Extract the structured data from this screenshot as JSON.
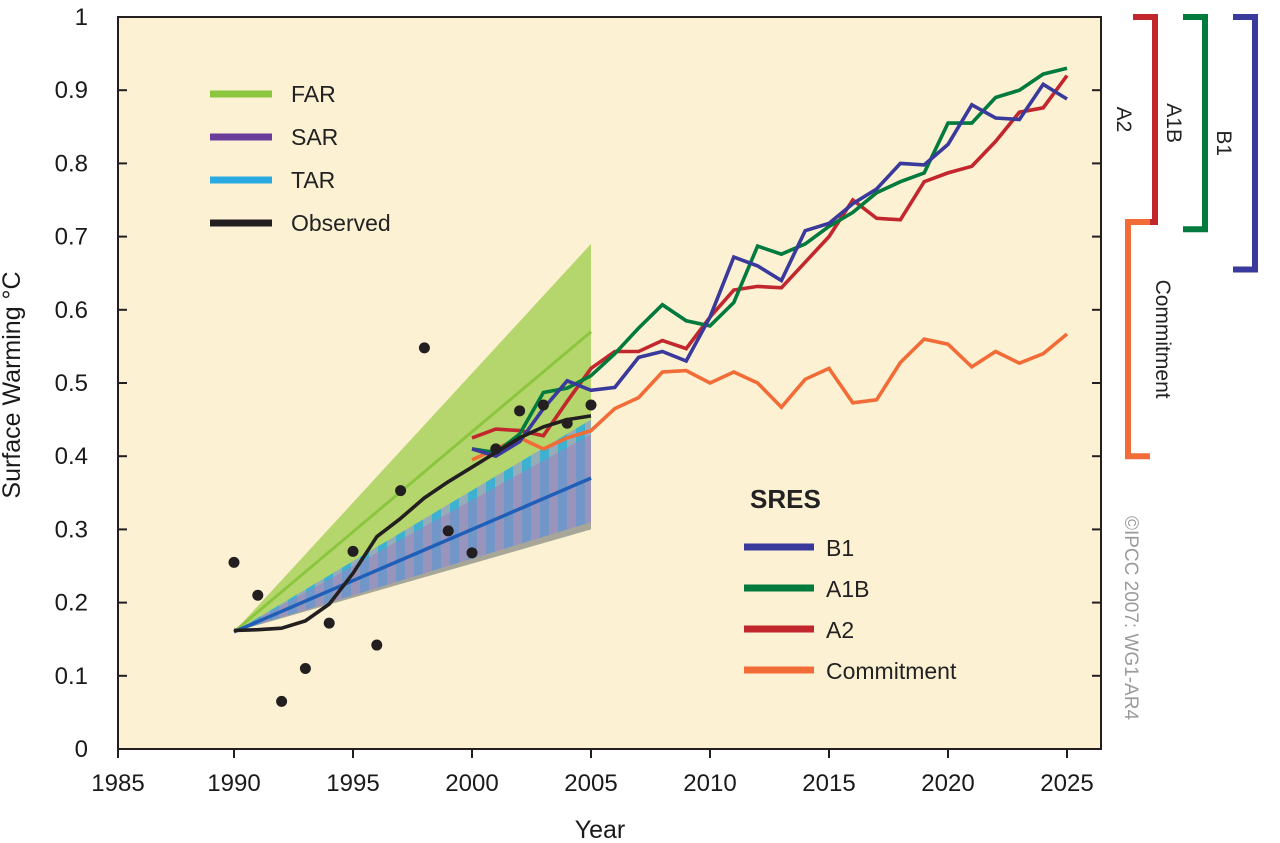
{
  "chart_data": {
    "type": "line",
    "xlabel": "Year",
    "ylabel": "Surface Warming °C",
    "xlim": [
      1985,
      2025
    ],
    "ylim": [
      0,
      1
    ],
    "x_ticks": [
      1985,
      1990,
      1995,
      2000,
      2005,
      2010,
      2015,
      2020,
      2025
    ],
    "y_ticks": [
      0,
      0.1,
      0.2,
      0.3,
      0.4,
      0.5,
      0.6,
      0.7,
      0.8,
      0.9,
      1
    ],
    "y_tick_labels": [
      "0",
      "0.1",
      "0.2",
      "0.3",
      "0.4",
      "0.5",
      "0.6",
      "0.7",
      "0.8",
      "0.9",
      "1"
    ],
    "plot_background": "#fdf1d3",
    "legend_assessments": [
      {
        "name": "FAR",
        "color": "#8cc63f"
      },
      {
        "name": "SAR",
        "color": "#6a3d9a"
      },
      {
        "name": "TAR",
        "color": "#29abe2"
      },
      {
        "name": "Observed",
        "color": "#231f20"
      }
    ],
    "legend_sres_title": "SRES",
    "legend_sres": [
      {
        "name": "B1",
        "color": "#3a3a9c"
      },
      {
        "name": "A1B",
        "color": "#007a3d"
      },
      {
        "name": "A2",
        "color": "#c1272d"
      },
      {
        "name": "Commitment",
        "color": "#f26c38"
      }
    ],
    "bands": [
      {
        "name": "FAR",
        "color": "#9ccc4a",
        "x": [
          1990,
          2005
        ],
        "lower": [
          0.16,
          0.3
        ],
        "upper": [
          0.16,
          0.69
        ],
        "central": [
          0.16,
          0.57
        ]
      },
      {
        "name": "SAR",
        "color": "#9b7fc0",
        "x": [
          1990,
          2005
        ],
        "lower": [
          0.16,
          0.3
        ],
        "upper": [
          0.16,
          0.43
        ],
        "central": [
          0.16,
          0.37
        ]
      },
      {
        "name": "TAR",
        "color": "#29abe2",
        "x": [
          1990,
          2005
        ],
        "lower": [
          0.16,
          0.31
        ],
        "upper": [
          0.16,
          0.45
        ],
        "central": [
          0.16,
          0.37
        ]
      }
    ],
    "observed_annual": {
      "x": [
        1990,
        1991,
        1992,
        1993,
        1994,
        1995,
        1996,
        1997,
        1998,
        1999,
        2000,
        2001,
        2002,
        2003,
        2004,
        2005
      ],
      "y": [
        0.255,
        0.21,
        0.065,
        0.11,
        0.172,
        0.27,
        0.142,
        0.353,
        0.548,
        0.298,
        0.268,
        0.41,
        0.462,
        0.47,
        0.445,
        0.47
      ]
    },
    "observed_smoothed": {
      "x": [
        1990,
        1991,
        1992,
        1993,
        1994,
        1995,
        1996,
        1997,
        1998,
        1999,
        2000,
        2001,
        2002,
        2003,
        2004,
        2005
      ],
      "y": [
        0.162,
        0.163,
        0.165,
        0.175,
        0.198,
        0.24,
        0.29,
        0.315,
        0.343,
        0.365,
        0.385,
        0.405,
        0.425,
        0.44,
        0.45,
        0.455
      ]
    },
    "scenarios": [
      {
        "name": "Commitment",
        "color": "#f26c38",
        "x": [
          2000,
          2001,
          2002,
          2003,
          2004,
          2005,
          2006,
          2007,
          2008,
          2009,
          2010,
          2011,
          2012,
          2013,
          2014,
          2015,
          2016,
          2017,
          2018,
          2019,
          2020,
          2021,
          2022,
          2023,
          2024,
          2025
        ],
        "y": [
          0.395,
          0.41,
          0.425,
          0.41,
          0.425,
          0.435,
          0.465,
          0.48,
          0.515,
          0.517,
          0.5,
          0.515,
          0.5,
          0.467,
          0.505,
          0.52,
          0.473,
          0.477,
          0.528,
          0.56,
          0.553,
          0.522,
          0.543,
          0.527,
          0.54,
          0.567
        ]
      },
      {
        "name": "A2",
        "color": "#c1272d",
        "x": [
          2000,
          2001,
          2002,
          2003,
          2004,
          2005,
          2006,
          2007,
          2008,
          2009,
          2010,
          2011,
          2012,
          2013,
          2014,
          2015,
          2016,
          2017,
          2018,
          2019,
          2020,
          2021,
          2022,
          2023,
          2024,
          2025
        ],
        "y": [
          0.425,
          0.437,
          0.435,
          0.428,
          0.475,
          0.52,
          0.543,
          0.543,
          0.558,
          0.547,
          0.59,
          0.627,
          0.632,
          0.63,
          0.665,
          0.7,
          0.75,
          0.725,
          0.723,
          0.775,
          0.787,
          0.796,
          0.83,
          0.87,
          0.876,
          0.92
        ]
      },
      {
        "name": "A1B",
        "color": "#007a3d",
        "x": [
          2000,
          2001,
          2002,
          2003,
          2004,
          2005,
          2006,
          2007,
          2008,
          2009,
          2010,
          2011,
          2012,
          2013,
          2014,
          2015,
          2016,
          2017,
          2018,
          2019,
          2020,
          2021,
          2022,
          2023,
          2024,
          2025
        ],
        "y": [
          0.41,
          0.405,
          0.43,
          0.487,
          0.493,
          0.51,
          0.54,
          0.575,
          0.607,
          0.585,
          0.578,
          0.61,
          0.687,
          0.676,
          0.69,
          0.714,
          0.733,
          0.76,
          0.775,
          0.787,
          0.855,
          0.855,
          0.89,
          0.9,
          0.922,
          0.93
        ]
      },
      {
        "name": "B1",
        "color": "#3a3a9c",
        "x": [
          2000,
          2001,
          2002,
          2003,
          2004,
          2005,
          2006,
          2007,
          2008,
          2009,
          2010,
          2011,
          2012,
          2013,
          2014,
          2015,
          2016,
          2017,
          2018,
          2019,
          2020,
          2021,
          2022,
          2023,
          2024,
          2025
        ],
        "y": [
          0.41,
          0.4,
          0.42,
          0.465,
          0.503,
          0.49,
          0.494,
          0.535,
          0.543,
          0.53,
          0.59,
          0.672,
          0.66,
          0.64,
          0.708,
          0.718,
          0.745,
          0.765,
          0.8,
          0.798,
          0.826,
          0.88,
          0.862,
          0.86,
          0.908,
          0.888
        ]
      }
    ],
    "ranges_2025": [
      {
        "name": "A2",
        "color": "#c1272d",
        "low": 0.72,
        "high": 1.0
      },
      {
        "name": "A1B",
        "color": "#007a3d",
        "low": 0.71,
        "high": 1.0
      },
      {
        "name": "B1",
        "color": "#3a3a9c",
        "low": 0.655,
        "high": 1.0
      },
      {
        "name": "Commitment",
        "color": "#f26c38",
        "low": 0.4,
        "high": 0.72
      }
    ],
    "copyright": "©IPCC  2007: WG1-AR4"
  }
}
